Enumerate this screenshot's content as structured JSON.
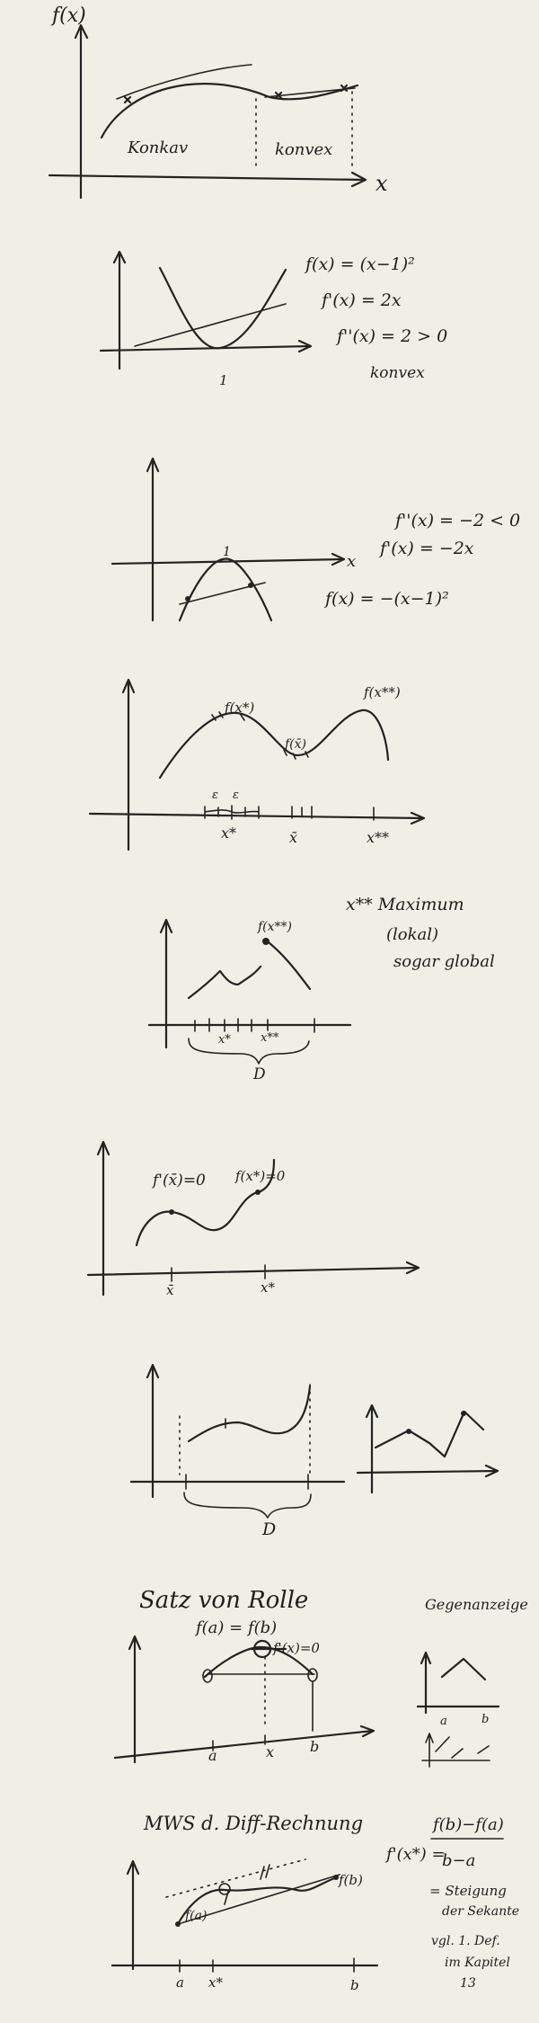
{
  "panel1": {
    "ylabel": "f(x)",
    "xlabel": "x",
    "region_left": "Konkav",
    "region_right": "konvex"
  },
  "panel2": {
    "eq1": "f(x) = (x−1)²",
    "eq2": "f'(x) = 2x",
    "eq3": "f''(x) = 2 > 0",
    "result": "konvex",
    "tick": "1"
  },
  "panel3": {
    "eq1": "f''(x) = −2 < 0",
    "eq2": "f'(x) = −2x",
    "eq3": "f(x) = −(x−1)²",
    "xlabel": "x",
    "tick": "1"
  },
  "panel4": {
    "fxstar": "f(x*)",
    "fxbar": "f(x̄)",
    "fxstarstar": "f(x**)",
    "eps1": "ε",
    "eps2": "ε",
    "xstar": "x*",
    "xbar": "x̄",
    "xstarstar": "x**"
  },
  "panel5": {
    "label_fx": "f(x**)",
    "xstar": "x*",
    "xstarstar": "x**",
    "domain": "D",
    "note1": "x** Maximum",
    "note2": "(lokal)",
    "note3": "sogar global"
  },
  "panel6": {
    "cond1": "f'(x̄)=0",
    "cond2": "f(x*)=0",
    "xbar": "x̄",
    "xstar": "x*"
  },
  "panel7": {
    "domain": "D"
  },
  "panel8": {
    "title": "Satz von Rolle",
    "eq": "f(a)  =  f(b)",
    "fx_cond": "f'(x)=0",
    "a": "a",
    "x": "x",
    "b": "b",
    "counter": "Gegenanzeige",
    "ca": "a",
    "cb": "b"
  },
  "panel9": {
    "title": "MWS d. Diff-Rechnung",
    "fprime": "f'(x*) =",
    "numer": "f(b)−f(a)",
    "denom": "b−a",
    "fa": "f(a)",
    "fb": "f(b)",
    "a": "a",
    "xstar": "x*",
    "b": "b",
    "n1": "= Steigung",
    "n2": "der Sekante",
    "n3": "vgl. 1. Def.",
    "n4": "im Kapitel",
    "n5": "13"
  }
}
